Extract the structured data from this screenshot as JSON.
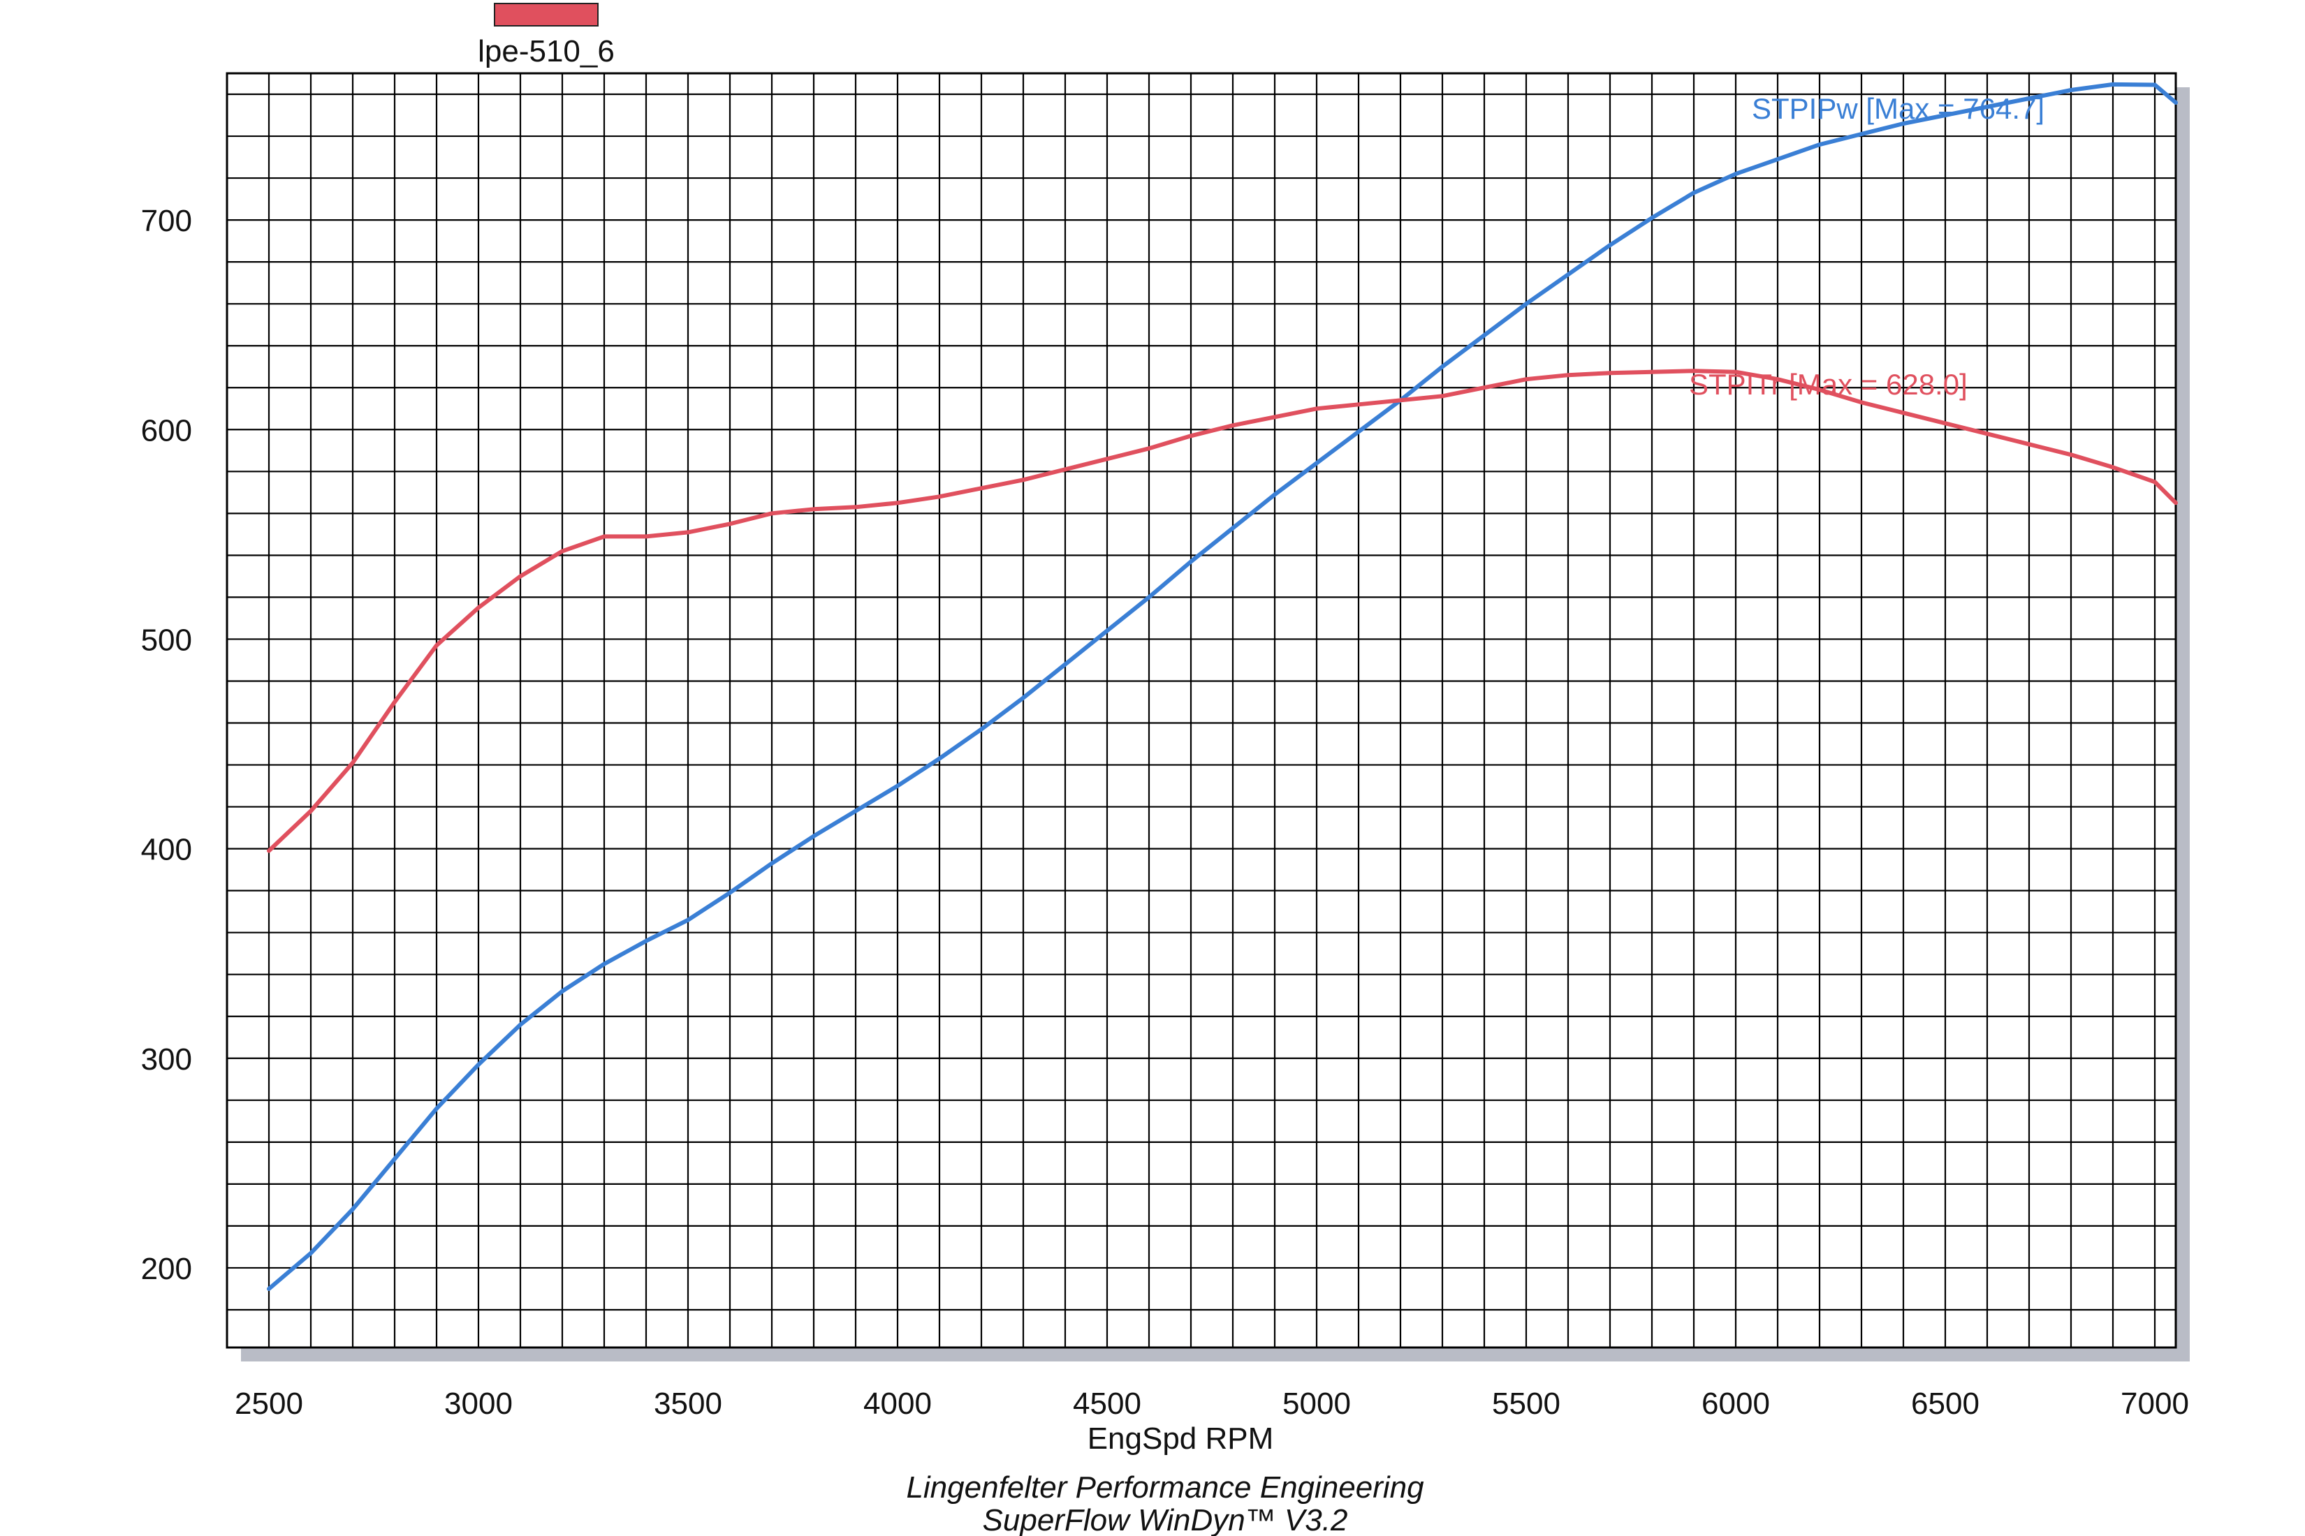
{
  "legend": {
    "name": "lpe-510_6",
    "color": "#e0505e"
  },
  "footer": {
    "line1": "Lingenfelter Performance Engineering",
    "line2": "SuperFlow WinDyn™ V3.2"
  },
  "chart_data": {
    "type": "line",
    "xlabel": "EngSpd RPM",
    "ylabel": "",
    "title": "",
    "xlim": [
      2400,
      7050
    ],
    "ylim": [
      162,
      770
    ],
    "grid": true,
    "x_ticks": [
      "2500",
      "3000",
      "3500",
      "4000",
      "4500",
      "5000",
      "5500",
      "6000",
      "6500",
      "7000"
    ],
    "y_ticks": [
      "200",
      "300",
      "400",
      "500",
      "600",
      "700"
    ],
    "series": [
      {
        "name": "STPIPw",
        "label": "STPIPw [Max = 764.7]",
        "color": "#3a7fd5",
        "x": [
          2500,
          2600,
          2700,
          2800,
          2900,
          3000,
          3100,
          3200,
          3300,
          3400,
          3500,
          3600,
          3700,
          3800,
          3900,
          4000,
          4100,
          4200,
          4300,
          4400,
          4500,
          4600,
          4700,
          4800,
          4900,
          5000,
          5100,
          5200,
          5300,
          5400,
          5500,
          5600,
          5700,
          5800,
          5900,
          6000,
          6100,
          6200,
          6300,
          6400,
          6500,
          6600,
          6700,
          6800,
          6900,
          7000,
          7050
        ],
        "y": [
          190,
          207,
          228,
          252,
          276,
          297,
          316,
          332,
          345,
          356,
          366,
          379,
          393,
          406,
          418,
          430,
          443,
          457,
          472,
          488,
          504,
          520,
          537,
          553,
          569,
          584,
          599,
          614,
          630,
          645,
          660,
          674,
          688,
          701,
          713,
          722,
          729,
          736,
          741,
          746,
          750,
          754,
          758,
          762,
          764.7,
          764.5,
          756
        ]
      },
      {
        "name": "STPITr",
        "label": "STPITr [Max = 628.0]",
        "color": "#e0505e",
        "x": [
          2500,
          2600,
          2700,
          2800,
          2900,
          3000,
          3100,
          3200,
          3300,
          3400,
          3500,
          3600,
          3700,
          3800,
          3900,
          4000,
          4100,
          4200,
          4300,
          4400,
          4500,
          4600,
          4700,
          4800,
          4900,
          5000,
          5100,
          5200,
          5300,
          5400,
          5500,
          5600,
          5700,
          5800,
          5900,
          6000,
          6100,
          6200,
          6300,
          6400,
          6500,
          6600,
          6700,
          6800,
          6900,
          7000,
          7050
        ],
        "y": [
          399,
          418,
          441,
          470,
          497,
          515,
          530,
          542,
          549,
          549,
          551,
          555,
          560,
          562,
          563,
          565,
          568,
          572,
          576,
          581,
          586,
          591,
          597,
          602,
          606,
          610,
          612,
          614,
          616,
          620,
          624,
          626,
          627,
          627.5,
          628,
          627.5,
          624,
          619,
          613,
          608,
          603,
          598,
          593,
          588,
          582,
          575,
          565
        ]
      }
    ]
  }
}
